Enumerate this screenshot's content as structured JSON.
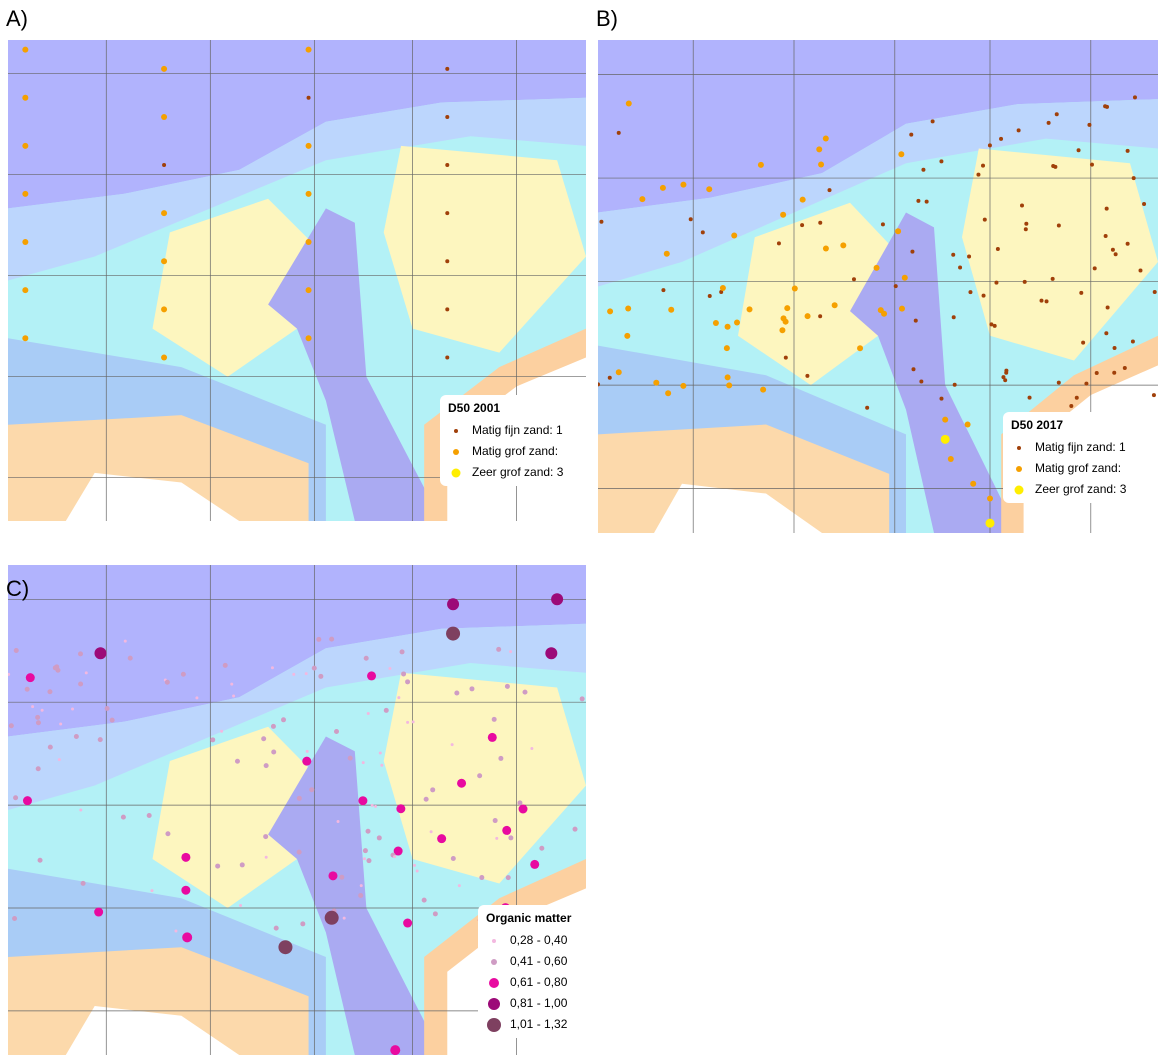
{
  "panels": [
    {
      "label": "A)",
      "legend": {
        "title": "D50 2001",
        "items": [
          "Matig fijn zand: 1",
          "Matig grof zand:",
          "Zeer grof zand: 3"
        ]
      }
    },
    {
      "label": "B)",
      "legend": {
        "title": "D50 2017",
        "items": [
          "Matig fijn zand: 1",
          "Matig grof zand:",
          "Zeer grof zand: 3"
        ]
      }
    },
    {
      "label": "C)",
      "legend": {
        "title": "Organic matter",
        "items": [
          "0,28 - 0,40",
          "0,41 - 0,60",
          "0,61 - 0,80",
          "0,81 - 1,00",
          "1,01 - 1,32"
        ]
      }
    }
  ]
}
